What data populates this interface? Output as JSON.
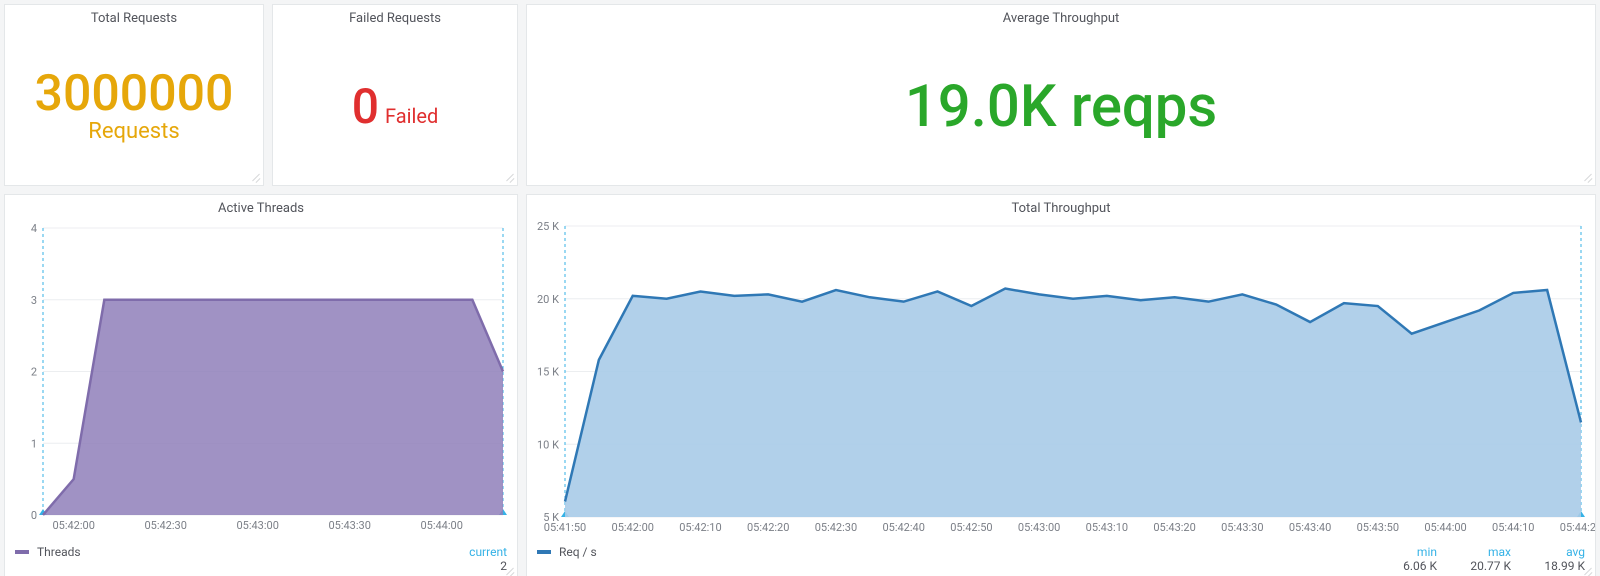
{
  "panels": {
    "total_requests": {
      "title": "Total Requests",
      "value": "3000000",
      "unit": "Requests",
      "value_color": "#e6a70a",
      "unit_color": "#e6a70a",
      "value_fontsize": 50,
      "unit_fontsize": 22
    },
    "failed_requests": {
      "title": "Failed Requests",
      "value": "0",
      "unit": "Failed",
      "value_color": "#e02f2f",
      "unit_color": "#e02f2f",
      "value_fontsize": 48,
      "unit_fontsize": 20
    },
    "avg_throughput": {
      "title": "Average Throughput",
      "value": "19.0K reqps",
      "value_color": "#2aa72a",
      "value_fontsize": 58
    },
    "active_threads": {
      "title": "Active Threads",
      "type": "area",
      "series_label": "Threads",
      "series_color": "#7f6cab",
      "series_fill": "#8f7fba",
      "series_fill_opacity": 0.85,
      "x_labels": [
        "05:42:00",
        "05:42:30",
        "05:43:00",
        "05:43:30",
        "05:44:00"
      ],
      "x_ticks": [
        1,
        4,
        7,
        10,
        13
      ],
      "y_min": 0,
      "y_max": 4,
      "y_step": 1,
      "x_domain_count": 16,
      "data": [
        0,
        0.5,
        3,
        3,
        3,
        3,
        3,
        3,
        3,
        3,
        3,
        3,
        3,
        3,
        3,
        2
      ],
      "legend_headers": [
        "current"
      ],
      "legend_values": [
        "2"
      ],
      "grid_color": "#eceef0",
      "background": "#ffffff",
      "edge_dash_color": "#35b2e6"
    },
    "total_throughput": {
      "title": "Total Throughput",
      "type": "area",
      "series_label": "Req / s",
      "series_color": "#2f78b5",
      "series_fill": "#a8cbe8",
      "series_fill_opacity": 0.9,
      "x_labels": [
        "05:41:50",
        "05:42:00",
        "05:42:10",
        "05:42:20",
        "05:42:30",
        "05:42:40",
        "05:42:50",
        "05:43:00",
        "05:43:10",
        "05:43:20",
        "05:43:30",
        "05:43:40",
        "05:43:50",
        "05:44:00",
        "05:44:10",
        "05:44:20"
      ],
      "x_ticks": [
        0,
        2,
        4,
        6,
        8,
        10,
        12,
        14,
        16,
        18,
        20,
        22,
        24,
        26,
        28,
        30
      ],
      "y_min": 5000,
      "y_max": 25000,
      "y_step": 5000,
      "y_tick_labels": [
        "5 K",
        "10 K",
        "15 K",
        "20 K",
        "25 K"
      ],
      "x_domain_count": 31,
      "data": [
        6060,
        15800,
        20200,
        20000,
        20500,
        20200,
        20300,
        19800,
        20600,
        20100,
        19800,
        20500,
        19500,
        20700,
        20300,
        20000,
        20200,
        19900,
        20100,
        19800,
        20300,
        19600,
        18400,
        19700,
        19500,
        17600,
        18400,
        19200,
        20400,
        20600,
        11500
      ],
      "legend_headers": [
        "min",
        "max",
        "avg"
      ],
      "legend_values": [
        "6.06 K",
        "20.77 K",
        "18.99 K"
      ],
      "grid_color": "#eceef0",
      "background": "#ffffff",
      "edge_dash_color": "#35b2e6"
    }
  }
}
